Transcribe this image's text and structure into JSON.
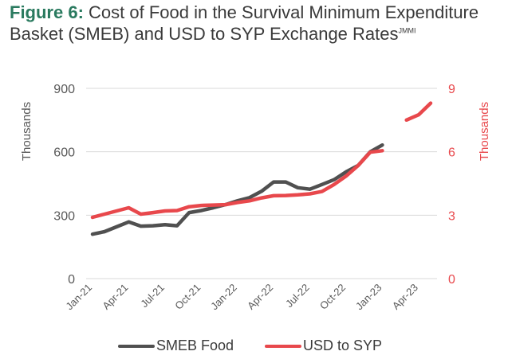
{
  "header": {
    "figure_label": "Figure 6:",
    "title_text": " Cost of Food in the Survival Minimum Expenditure Basket (SMEB) and USD to SYP Exchange Rates",
    "source_sup": "JMMI"
  },
  "colors": {
    "smeb": "#505050",
    "usd": "#e8484c",
    "grid": "#d9d9d9",
    "title_accent": "#2a7a5f"
  },
  "chart_data": {
    "type": "line",
    "x": [
      "Jan-21",
      "Feb-21",
      "Mar-21",
      "Apr-21",
      "May-21",
      "Jun-21",
      "Jul-21",
      "Aug-21",
      "Sep-21",
      "Oct-21",
      "Nov-21",
      "Dec-21",
      "Jan-22",
      "Feb-22",
      "Mar-22",
      "Apr-22",
      "May-22",
      "Jun-22",
      "Jul-22",
      "Aug-22",
      "Sep-22",
      "Oct-22",
      "Nov-22",
      "Dec-22",
      "Jan-23",
      "Feb-23",
      "Mar-23",
      "Apr-23",
      "May-23"
    ],
    "x_tick_labels": [
      "Jan-21",
      "Apr-21",
      "Jul-21",
      "Oct-21",
      "Jan-22",
      "Apr-22",
      "Jul-22",
      "Oct-22",
      "Jan-23",
      "Apr-23"
    ],
    "x_tick_indices": [
      0,
      3,
      6,
      9,
      12,
      15,
      18,
      21,
      24,
      27
    ],
    "y_left": {
      "label": "Thousands",
      "ticks": [
        0,
        300,
        600,
        900
      ],
      "tick_labels": [
        "0",
        "300",
        "600",
        "900"
      ],
      "lim": [
        0,
        900
      ]
    },
    "y_right": {
      "label": "Thousands",
      "ticks": [
        0,
        3,
        6,
        9
      ],
      "tick_labels": [
        "0",
        "3",
        "6",
        "9"
      ],
      "lim": [
        0,
        9
      ]
    },
    "grid": true,
    "legend": "bottom",
    "series": [
      {
        "name": "SMEB Food",
        "axis": "left",
        "values": [
          210,
          222,
          245,
          268,
          248,
          250,
          255,
          250,
          312,
          322,
          335,
          350,
          368,
          383,
          413,
          457,
          457,
          430,
          423,
          445,
          468,
          505,
          535,
          600,
          632,
          null,
          null,
          null,
          null
        ]
      },
      {
        "name": "USD to SYP",
        "axis": "right",
        "values": [
          2.9,
          3.05,
          3.2,
          3.35,
          3.05,
          3.12,
          3.2,
          3.22,
          3.4,
          3.46,
          3.48,
          3.5,
          3.6,
          3.68,
          3.82,
          3.92,
          3.93,
          3.96,
          4.01,
          4.12,
          4.45,
          4.85,
          5.35,
          5.98,
          6.05,
          null,
          7.5,
          7.75,
          8.3
        ]
      }
    ]
  }
}
